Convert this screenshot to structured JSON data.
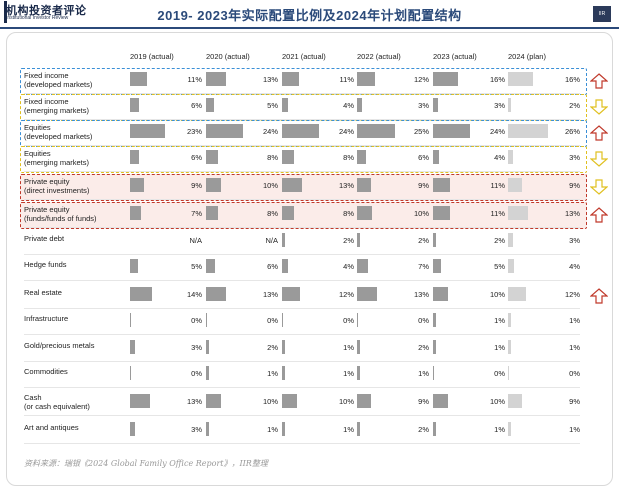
{
  "header": {
    "logo_cn": "机构投资者评论",
    "logo_en": "Institutional Investor Review",
    "title": "2019- 2023年实际配置比例及2024年计划配置结构",
    "badge": "IIR"
  },
  "colors": {
    "bar_actual": "#9a9a9a",
    "bar_plan": "#d3d3d3",
    "blue_dash": "#3a8fd6",
    "yellow_dash": "#e0c020",
    "red_dash": "#c0392b",
    "pink_fill": "#fbece9",
    "arrow_up": "#c0392b",
    "arrow_down": "#e0c020"
  },
  "chart_data": {
    "type": "table",
    "title": "2019- 2023年实际配置比例及2024年计划配置结构",
    "columns": [
      "2019 (actual)",
      "2020 (actual)",
      "2021 (actual)",
      "2022 (actual)",
      "2023 (actual)",
      "2024 (plan)"
    ],
    "rows": [
      {
        "label": [
          "Fixed income",
          "(developed markets)"
        ],
        "values": [
          11,
          13,
          11,
          12,
          16,
          16
        ],
        "display": [
          "11%",
          "13%",
          "11%",
          "12%",
          "16%",
          "16%"
        ],
        "highlight": "blue",
        "arrow": "up"
      },
      {
        "label": [
          "Fixed income",
          "(emerging markets)"
        ],
        "values": [
          6,
          5,
          4,
          3,
          3,
          2
        ],
        "display": [
          "6%",
          "5%",
          "4%",
          "3%",
          "3%",
          "2%"
        ],
        "highlight": "yellow",
        "arrow": "down"
      },
      {
        "label": [
          "Equities",
          "(developed markets)"
        ],
        "values": [
          23,
          24,
          24,
          25,
          24,
          26
        ],
        "display": [
          "23%",
          "24%",
          "24%",
          "25%",
          "24%",
          "26%"
        ],
        "highlight": "blue",
        "arrow": "up"
      },
      {
        "label": [
          "Equities",
          "(emerging markets)"
        ],
        "values": [
          6,
          8,
          8,
          6,
          4,
          3
        ],
        "display": [
          "6%",
          "8%",
          "8%",
          "6%",
          "4%",
          "3%"
        ],
        "highlight": "yellow",
        "arrow": "down"
      },
      {
        "label": [
          "Private equity",
          "(direct investments)"
        ],
        "values": [
          9,
          10,
          13,
          9,
          11,
          9
        ],
        "display": [
          "9%",
          "10%",
          "13%",
          "9%",
          "11%",
          "9%"
        ],
        "highlight": "red",
        "arrow": "down"
      },
      {
        "label": [
          "Private equity",
          "(funds/funds of funds)"
        ],
        "values": [
          7,
          8,
          8,
          10,
          11,
          13
        ],
        "display": [
          "7%",
          "8%",
          "8%",
          "10%",
          "11%",
          "13%"
        ],
        "highlight": "red",
        "arrow": "up"
      },
      {
        "label": [
          "Private debt"
        ],
        "values": [
          null,
          null,
          2,
          2,
          2,
          3
        ],
        "display": [
          "N/A",
          "N/A",
          "2%",
          "2%",
          "2%",
          "3%"
        ],
        "highlight": "",
        "arrow": ""
      },
      {
        "label": [
          "Hedge funds"
        ],
        "values": [
          5,
          6,
          4,
          7,
          5,
          4
        ],
        "display": [
          "5%",
          "6%",
          "4%",
          "7%",
          "5%",
          "4%"
        ],
        "highlight": "",
        "arrow": ""
      },
      {
        "label": [
          "Real estate"
        ],
        "values": [
          14,
          13,
          12,
          13,
          10,
          12
        ],
        "display": [
          "14%",
          "13%",
          "12%",
          "13%",
          "10%",
          "12%"
        ],
        "highlight": "",
        "arrow": "up"
      },
      {
        "label": [
          "Infrastructure"
        ],
        "values": [
          0,
          0,
          0,
          0,
          1,
          1
        ],
        "display": [
          "0%",
          "0%",
          "0%",
          "0%",
          "1%",
          "1%"
        ],
        "highlight": "",
        "arrow": ""
      },
      {
        "label": [
          "Gold/precious metals"
        ],
        "values": [
          3,
          2,
          1,
          2,
          1,
          1
        ],
        "display": [
          "3%",
          "2%",
          "1%",
          "2%",
          "1%",
          "1%"
        ],
        "highlight": "",
        "arrow": ""
      },
      {
        "label": [
          "Commodities"
        ],
        "values": [
          0,
          1,
          1,
          1,
          0,
          0
        ],
        "display": [
          "0%",
          "1%",
          "1%",
          "1%",
          "0%",
          "0%"
        ],
        "highlight": "",
        "arrow": ""
      },
      {
        "label": [
          "Cash",
          "(or cash equivalent)"
        ],
        "values": [
          13,
          10,
          10,
          9,
          10,
          9
        ],
        "display": [
          "13%",
          "10%",
          "10%",
          "9%",
          "10%",
          "9%"
        ],
        "highlight": "",
        "arrow": ""
      },
      {
        "label": [
          "Art and antiques"
        ],
        "values": [
          3,
          1,
          1,
          2,
          1,
          1
        ],
        "display": [
          "3%",
          "1%",
          "1%",
          "2%",
          "1%",
          "1%"
        ],
        "highlight": "",
        "arrow": ""
      }
    ]
  },
  "source": "资料来源：瑞银《2024 Global Family Office Report》，IIR整理"
}
